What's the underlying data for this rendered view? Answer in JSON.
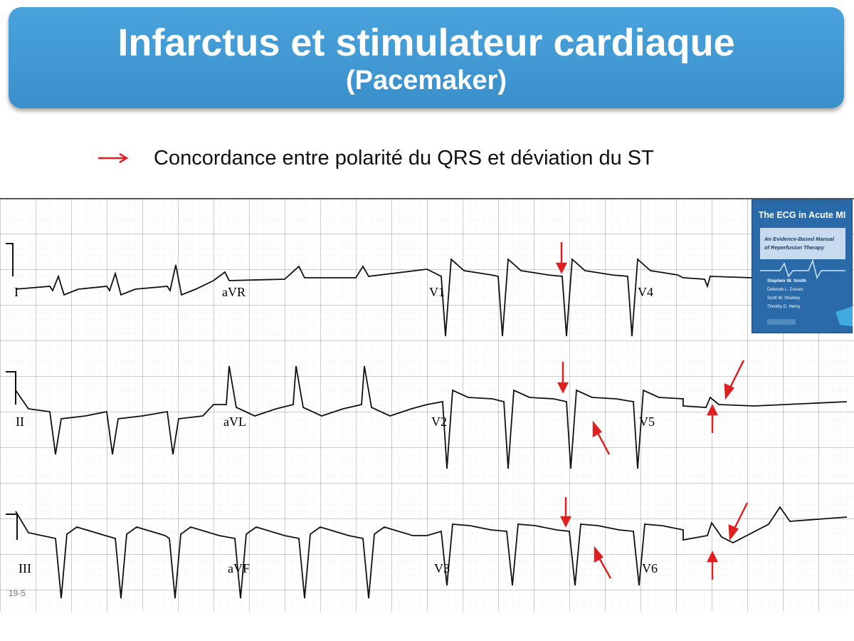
{
  "title": "Infarctus et stimulateur cardiaque",
  "subtitle": "(Pacemaker)",
  "legend": {
    "text": "Concordance entre polarité du QRS et déviation du ST",
    "arrow_color": "#e02020"
  },
  "leads": [
    "I",
    "aVR",
    "V1",
    "V4",
    "II",
    "aVL",
    "V2",
    "V5",
    "III",
    "aVF",
    "V3",
    "V6"
  ],
  "book": {
    "title": "The ECG in Acute MI",
    "subtitle_line1": "An Evidence-Based Manual",
    "subtitle_line2": "of Reperfusion Therapy",
    "authors": [
      "Stephen W. Smith",
      "Deborah L. Zvosec",
      "Scott W. Sharkey",
      "Timothy D. Henry"
    ],
    "color": "#2a6aa8"
  },
  "figure_number": "19-5"
}
